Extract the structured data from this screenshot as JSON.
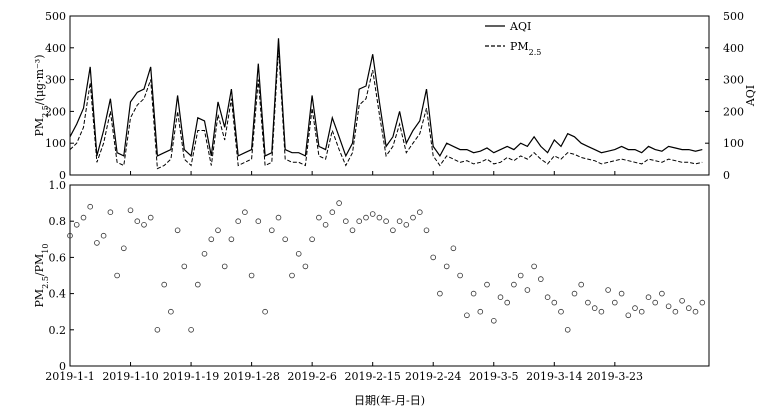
{
  "chart_data": [
    {
      "type": "line",
      "panel": "top",
      "ylabel_left": "PM2.5/(μg·m⁻³)",
      "ylabel_right": "AQI",
      "ylim": [
        0,
        500
      ],
      "yticks": [
        "0",
        "100",
        "200",
        "300",
        "400",
        "500"
      ],
      "legend": {
        "placement": "top-right",
        "entries": [
          "AQI",
          "PM2.5"
        ]
      },
      "x_range_days": [
        0,
        95
      ],
      "series": [
        {
          "name": "AQI",
          "style": "solid",
          "x": [
            0,
            1,
            2,
            3,
            4,
            5,
            6,
            7,
            8,
            9,
            10,
            11,
            12,
            13,
            14,
            15,
            16,
            17,
            18,
            19,
            20,
            21,
            22,
            23,
            24,
            25,
            26,
            27,
            28,
            29,
            30,
            31,
            32,
            33,
            34,
            35,
            36,
            37,
            38,
            39,
            40,
            41,
            42,
            43,
            44,
            45,
            46,
            47,
            48,
            49,
            50,
            51,
            52,
            53,
            54,
            55,
            56,
            57,
            58,
            59,
            60,
            61,
            62,
            63,
            64,
            65,
            66,
            67,
            68,
            69,
            70,
            71,
            72,
            73,
            74,
            75,
            76,
            77,
            78,
            79,
            80,
            81,
            82,
            83,
            84,
            85,
            86,
            87,
            88,
            89,
            90,
            91,
            92,
            93,
            94
          ],
          "values": [
            120,
            160,
            210,
            340,
            60,
            140,
            240,
            70,
            60,
            230,
            260,
            270,
            340,
            60,
            70,
            80,
            250,
            80,
            60,
            180,
            170,
            60,
            230,
            150,
            270,
            60,
            70,
            80,
            350,
            60,
            70,
            430,
            80,
            70,
            70,
            60,
            250,
            90,
            80,
            180,
            120,
            60,
            100,
            270,
            280,
            380,
            230,
            90,
            120,
            200,
            100,
            140,
            170,
            270,
            90,
            60,
            100,
            90,
            80,
            80,
            70,
            75,
            85,
            70,
            80,
            90,
            80,
            100,
            90,
            120,
            90,
            70,
            110,
            90,
            130,
            120,
            100,
            90,
            80,
            70,
            75,
            80,
            90,
            80,
            80,
            70,
            90,
            80,
            75,
            90,
            85,
            80,
            80,
            75,
            80
          ]
        },
        {
          "name": "PM2.5",
          "style": "dashed",
          "x": [
            0,
            1,
            2,
            3,
            4,
            5,
            6,
            7,
            8,
            9,
            10,
            11,
            12,
            13,
            14,
            15,
            16,
            17,
            18,
            19,
            20,
            21,
            22,
            23,
            24,
            25,
            26,
            27,
            28,
            29,
            30,
            31,
            32,
            33,
            34,
            35,
            36,
            37,
            38,
            39,
            40,
            41,
            42,
            43,
            44,
            45,
            46,
            47,
            48,
            49,
            50,
            51,
            52,
            53,
            54,
            55,
            56,
            57,
            58,
            59,
            60,
            61,
            62,
            63,
            64,
            65,
            66,
            67,
            68,
            69,
            70,
            71,
            72,
            73,
            74,
            75,
            76,
            77,
            78,
            79,
            80,
            81,
            82,
            83,
            84,
            85,
            86,
            87,
            88,
            89,
            90,
            91,
            92,
            93,
            94
          ],
          "values": [
            80,
            100,
            150,
            290,
            40,
            100,
            200,
            40,
            30,
            180,
            220,
            240,
            300,
            20,
            30,
            50,
            200,
            50,
            30,
            140,
            140,
            30,
            190,
            110,
            240,
            30,
            40,
            50,
            300,
            30,
            40,
            400,
            50,
            40,
            40,
            30,
            210,
            60,
            50,
            140,
            80,
            30,
            70,
            220,
            240,
            330,
            190,
            60,
            90,
            160,
            70,
            100,
            130,
            210,
            60,
            30,
            60,
            50,
            40,
            45,
            35,
            40,
            50,
            35,
            40,
            55,
            45,
            60,
            50,
            70,
            50,
            35,
            60,
            50,
            70,
            65,
            55,
            50,
            45,
            35,
            40,
            45,
            50,
            45,
            40,
            35,
            50,
            45,
            40,
            50,
            45,
            40,
            40,
            35,
            40
          ]
        }
      ]
    },
    {
      "type": "scatter",
      "panel": "bottom",
      "ylabel": "PM2.5/PM10",
      "xlabel": "日期(年-月-日)",
      "ylim": [
        0,
        1.0
      ],
      "yticks": [
        "0",
        "0.2",
        "0.4",
        "0.6",
        "0.8",
        "1.0"
      ],
      "xticks": [
        "2019-1-1",
        "2019-1-10",
        "2019-1-19",
        "2019-1-28",
        "2019-2-6",
        "2019-2-15",
        "2019-2-24",
        "2019-3-5",
        "2019-3-14",
        "2019-3-23"
      ],
      "xtick_days": [
        0,
        9,
        18,
        27,
        36,
        45,
        54,
        63,
        72,
        81
      ],
      "x_range_days": [
        0,
        95
      ],
      "series": [
        {
          "name": "PM2.5/PM10",
          "marker": "open-circle",
          "x": [
            0,
            1,
            2,
            3,
            4,
            5,
            6,
            7,
            8,
            9,
            10,
            11,
            12,
            13,
            14,
            15,
            16,
            17,
            18,
            19,
            20,
            21,
            22,
            23,
            24,
            25,
            26,
            27,
            28,
            29,
            30,
            31,
            32,
            33,
            34,
            35,
            36,
            37,
            38,
            39,
            40,
            41,
            42,
            43,
            44,
            45,
            46,
            47,
            48,
            49,
            50,
            51,
            52,
            53,
            54,
            55,
            56,
            57,
            58,
            59,
            60,
            61,
            62,
            63,
            64,
            65,
            66,
            67,
            68,
            69,
            70,
            71,
            72,
            73,
            74,
            75,
            76,
            77,
            78,
            79,
            80,
            81,
            82,
            83,
            84,
            85,
            86,
            87,
            88,
            89,
            90,
            91,
            92,
            93,
            94
          ],
          "values": [
            0.72,
            0.78,
            0.82,
            0.88,
            0.68,
            0.72,
            0.85,
            0.5,
            0.65,
            0.86,
            0.8,
            0.78,
            0.82,
            0.2,
            0.45,
            0.3,
            0.75,
            0.55,
            0.2,
            0.45,
            0.62,
            0.7,
            0.75,
            0.55,
            0.7,
            0.8,
            0.85,
            0.5,
            0.8,
            0.3,
            0.75,
            0.82,
            0.7,
            0.5,
            0.62,
            0.55,
            0.7,
            0.82,
            0.78,
            0.85,
            0.9,
            0.8,
            0.75,
            0.8,
            0.82,
            0.84,
            0.82,
            0.8,
            0.75,
            0.8,
            0.78,
            0.82,
            0.85,
            0.75,
            0.6,
            0.4,
            0.55,
            0.65,
            0.5,
            0.28,
            0.4,
            0.3,
            0.45,
            0.25,
            0.38,
            0.35,
            0.45,
            0.5,
            0.42,
            0.55,
            0.48,
            0.38,
            0.35,
            0.3,
            0.2,
            0.4,
            0.45,
            0.35,
            0.32,
            0.3,
            0.42,
            0.35,
            0.4,
            0.28,
            0.32,
            0.3,
            0.38,
            0.35,
            0.4,
            0.33,
            0.3,
            0.36,
            0.32,
            0.3,
            0.35
          ]
        }
      ]
    }
  ]
}
